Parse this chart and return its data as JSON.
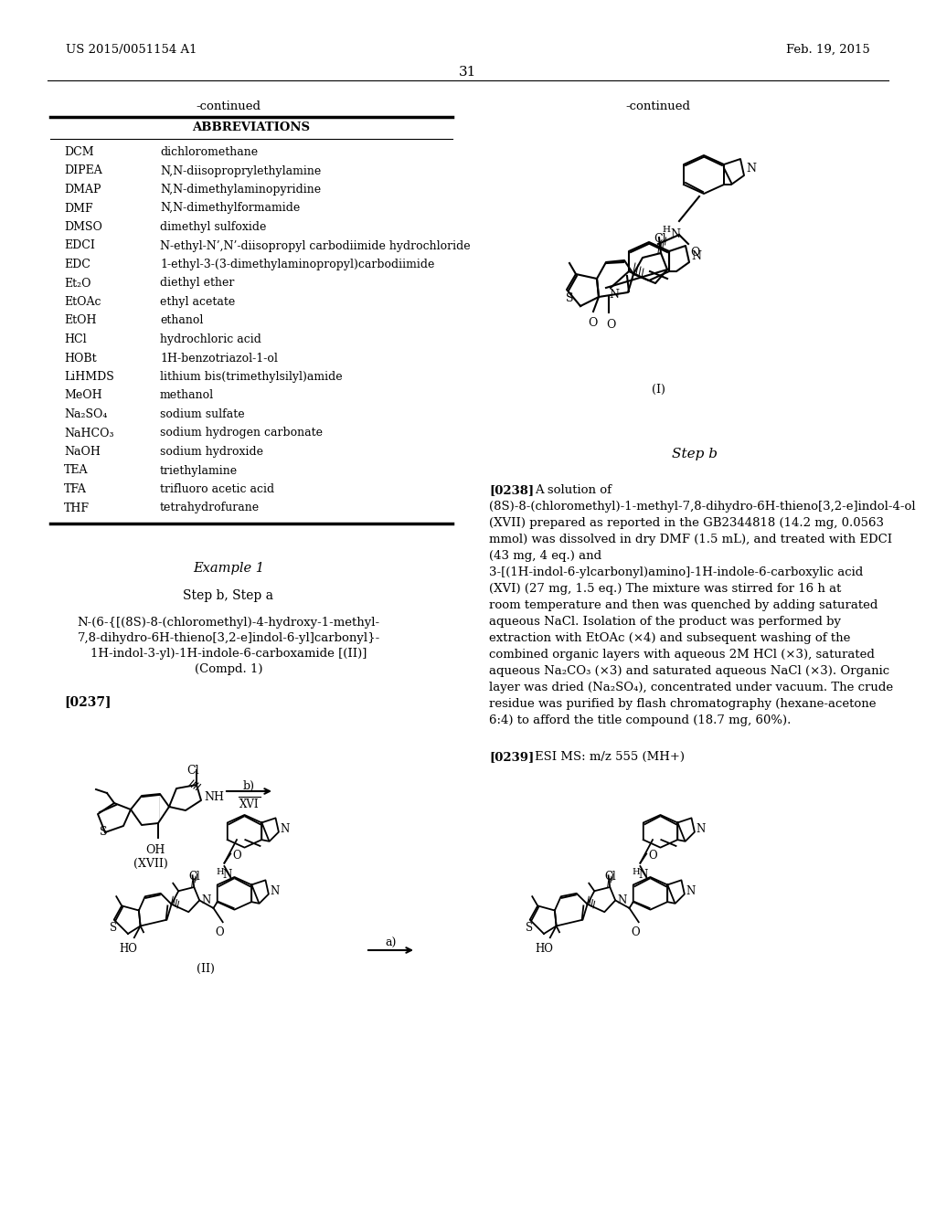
{
  "background_color": "#ffffff",
  "header_left": "US 2015/0051154 A1",
  "header_right": "Feb. 19, 2015",
  "page_number": "31",
  "continued_left": "-continued",
  "continued_right": "-continued",
  "table_header": "ABBREVIATIONS",
  "abbreviations": [
    [
      "DCM",
      "dichloromethane"
    ],
    [
      "DIPEA",
      "N,N-diisoproprylethylamine"
    ],
    [
      "DMAP",
      "N,N-dimethylaminopyridine"
    ],
    [
      "DMF",
      "N,N-dimethylformamide"
    ],
    [
      "DMSO",
      "dimethyl sulfoxide"
    ],
    [
      "EDCI",
      "N-ethyl-N’,N’-diisopropyl carbodiimide hydrochloride"
    ],
    [
      "EDC",
      "1-ethyl-3-(3-dimethylaminopropyl)carbodiimide"
    ],
    [
      "Et₂O",
      "diethyl ether"
    ],
    [
      "EtOAc",
      "ethyl acetate"
    ],
    [
      "EtOH",
      "ethanol"
    ],
    [
      "HCl",
      "hydrochloric acid"
    ],
    [
      "HOBt",
      "1H-benzotriazol-1-ol"
    ],
    [
      "LiHMDS",
      "lithium bis(trimethylsilyl)amide"
    ],
    [
      "MeOH",
      "methanol"
    ],
    [
      "Na₂SO₄",
      "sodium sulfate"
    ],
    [
      "NaHCO₃",
      "sodium hydrogen carbonate"
    ],
    [
      "NaOH",
      "sodium hydroxide"
    ],
    [
      "TEA",
      "triethylamine"
    ],
    [
      "TFA",
      "trifluoro acetic acid"
    ],
    [
      "THF",
      "tetrahydrofurane"
    ]
  ],
  "example_title": "Example 1",
  "step_title_left": "Step b, Step a",
  "compound_name_lines": [
    "N-(6-{[(8S)-8-(chloromethyl)-4-hydroxy-1-methyl-",
    "7,8-dihydro-6H-thieno[3,2-e]indol-6-yl]carbonyl}-",
    "1H-indol-3-yl)-1H-indole-6-carboxamide [(II)]",
    "(Compd. 1)"
  ],
  "paragraph_0237": "[0237]",
  "step_b_right": "Step b",
  "paragraph_0238_label": "[0238]",
  "paragraph_0238_text": "A solution of (8S)-8-(chloromethyl)-1-methyl-7,8-dihydro-6H-thieno[3,2-e]indol-4-ol  (XVII) prepared as reported in the GB2344818 (14.2 mg, 0.0563 mmol) was dissolved in dry DMF (1.5 mL), and treated with EDCI (43 mg, 4 eq.) and 3-[(1H-indol-6-ylcarbonyl)amino]-1H-indole-6-carboxylic acid (XVI) (27 mg, 1.5 eq.) The mixture was stirred for 16 h at room temperature and then was quenched by adding saturated aqueous NaCl. Isolation of the product was performed by extraction with EtOAc (×4) and subsequent washing of the combined organic layers with aqueous 2M HCl (×3), saturated aqueous Na₂CO₃ (×3) and saturated aqueous NaCl (×3). Organic layer was dried (Na₂SO₄), concentrated under vacuum. The crude residue was purified by flash chromatography (hexane-acetone 6:4) to afford the title compound (18.7 mg, 60%).",
  "paragraph_0239_label": "[0239]",
  "paragraph_0239_text": "ESI MS: m/z 555 (MH+)"
}
